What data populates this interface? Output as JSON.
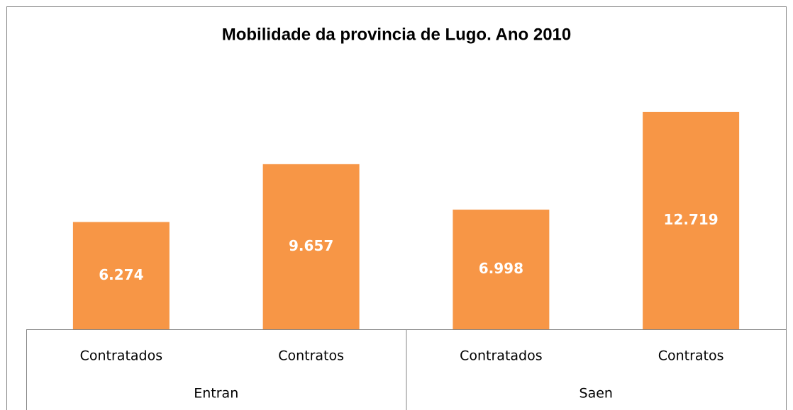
{
  "chart_data": {
    "type": "bar",
    "title": "Mobilidade da provincia de Lugo. Ano 2010",
    "categories": [
      "Contratados",
      "Contratos",
      "Contratados",
      "Contratos"
    ],
    "groups": [
      "Entran",
      "Saen"
    ],
    "values": [
      6274,
      9657,
      6998,
      12719
    ],
    "value_labels": [
      "6.274",
      "9.657",
      "6.998",
      "12.719"
    ],
    "color": "#f79646",
    "ylim": [
      0,
      14000
    ]
  }
}
